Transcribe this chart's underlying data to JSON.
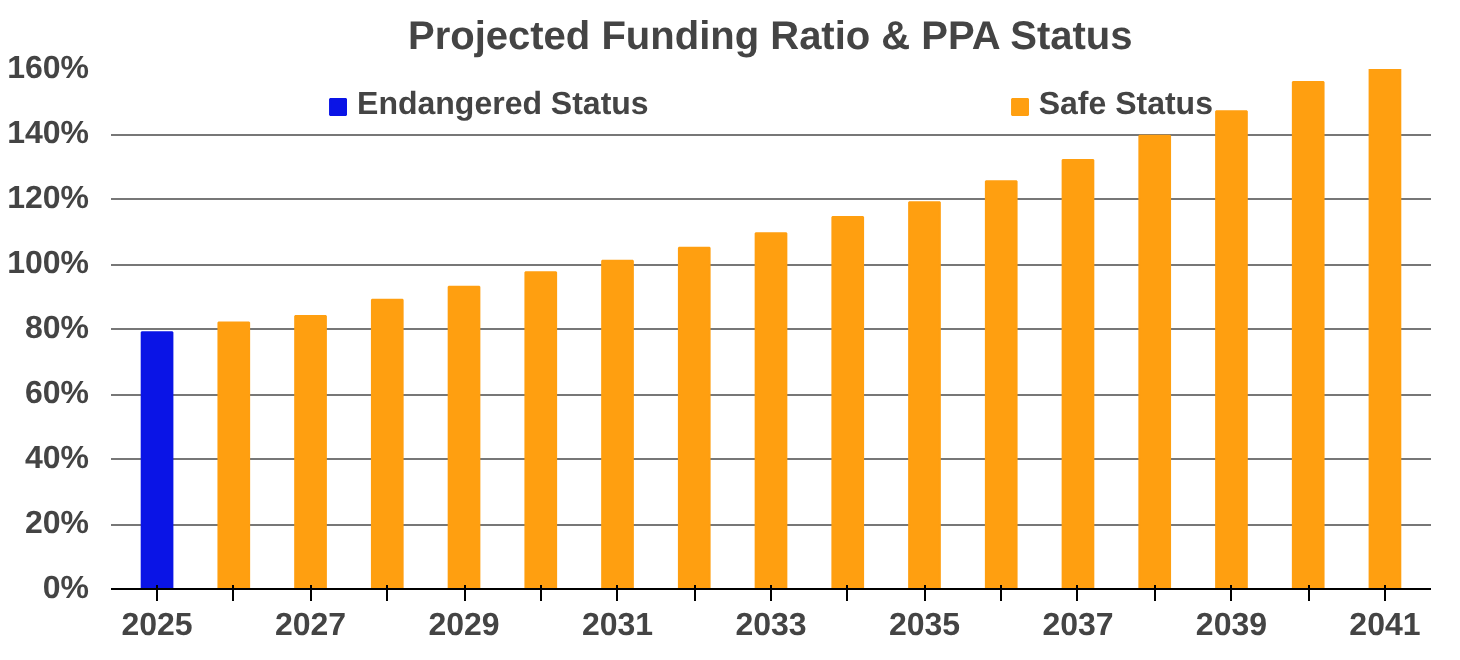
{
  "chart_data": {
    "type": "bar",
    "title": "Projected Funding Ratio & PPA Status",
    "categories": [
      "2025",
      null,
      "2027",
      null,
      "2029",
      null,
      "2031",
      null,
      "2033",
      null,
      "2035",
      null,
      "2037",
      null,
      "2039",
      null,
      "2041"
    ],
    "series": [
      {
        "name": "Endangered Status",
        "color": "#0a14e6",
        "values": [
          79,
          null,
          null,
          null,
          null,
          null,
          null,
          null,
          null,
          null,
          null,
          null,
          null,
          null,
          null,
          null,
          null
        ]
      },
      {
        "name": "Safe Status",
        "color": "#ff9f10",
        "values": [
          null,
          82,
          84,
          89,
          93,
          97.5,
          101,
          105,
          109.5,
          114.5,
          119,
          125.5,
          132,
          139.5,
          147,
          156,
          160
        ]
      }
    ],
    "ylim": [
      0,
      160
    ],
    "yticks": [
      {
        "value": 0,
        "label": "0%"
      },
      {
        "value": 20,
        "label": "20%"
      },
      {
        "value": 40,
        "label": "40%"
      },
      {
        "value": 60,
        "label": "60%"
      },
      {
        "value": 80,
        "label": "80%"
      },
      {
        "value": 100,
        "label": "100%"
      },
      {
        "value": 120,
        "label": "120%"
      },
      {
        "value": 140,
        "label": "140%"
      },
      {
        "value": 160,
        "label": "160%"
      }
    ],
    "grid": "y",
    "legend": "top"
  }
}
